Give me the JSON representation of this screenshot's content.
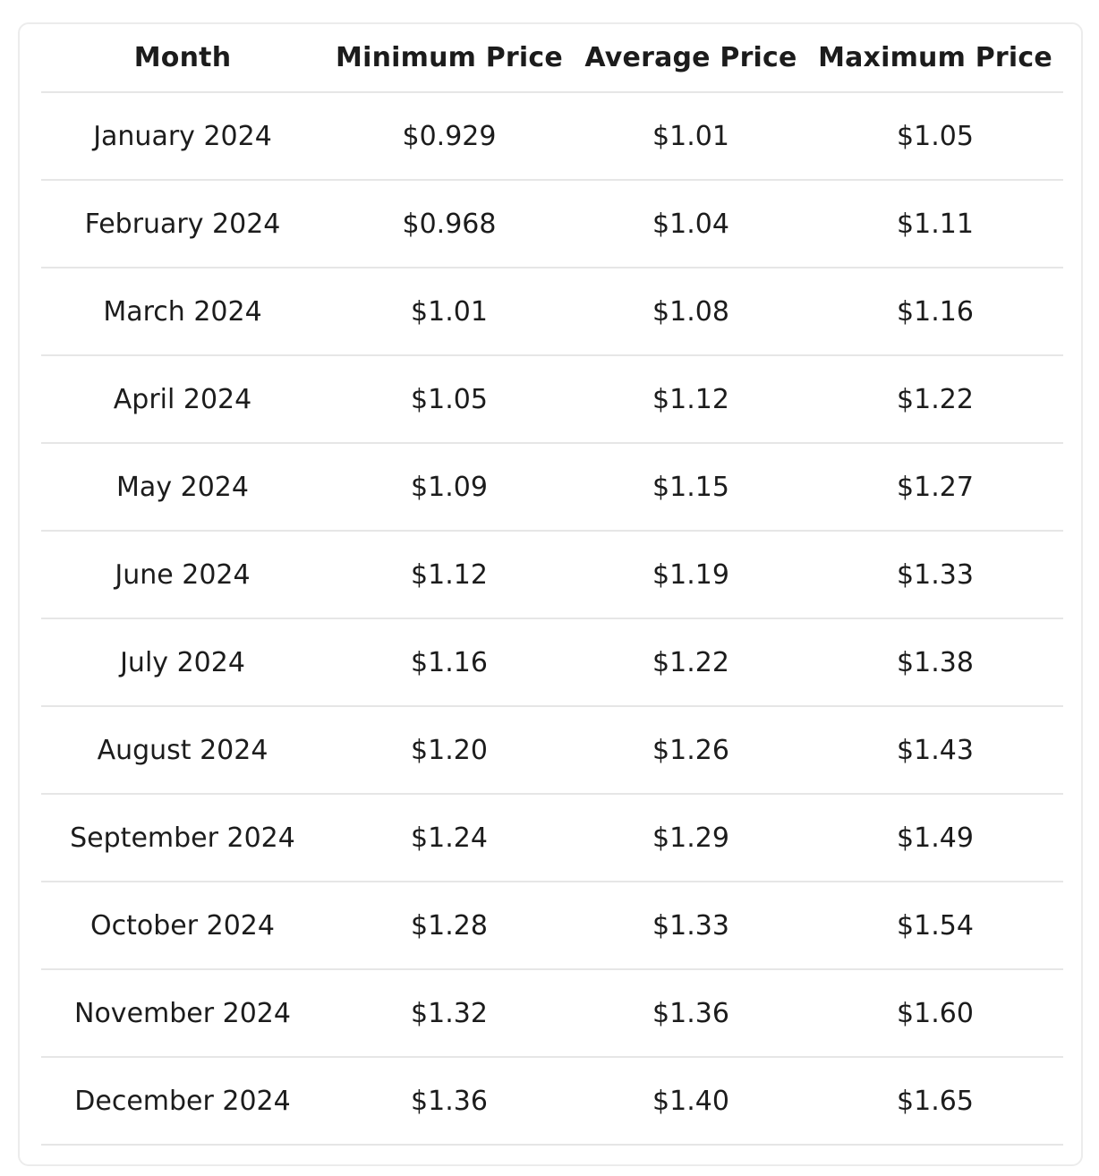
{
  "chart_data": {
    "type": "table",
    "columns": [
      "Month",
      "Minimum Price",
      "Average Price",
      "Maximum Price"
    ],
    "rows": [
      [
        "January 2024",
        "$0.929",
        "$1.01",
        "$1.05"
      ],
      [
        "February 2024",
        "$0.968",
        "$1.04",
        "$1.11"
      ],
      [
        "March 2024",
        "$1.01",
        "$1.08",
        "$1.16"
      ],
      [
        "April 2024",
        "$1.05",
        "$1.12",
        "$1.22"
      ],
      [
        "May 2024",
        "$1.09",
        "$1.15",
        "$1.27"
      ],
      [
        "June 2024",
        "$1.12",
        "$1.19",
        "$1.33"
      ],
      [
        "July 2024",
        "$1.16",
        "$1.22",
        "$1.38"
      ],
      [
        "August 2024",
        "$1.20",
        "$1.26",
        "$1.43"
      ],
      [
        "September 2024",
        "$1.24",
        "$1.29",
        "$1.49"
      ],
      [
        "October 2024",
        "$1.28",
        "$1.33",
        "$1.54"
      ],
      [
        "November 2024",
        "$1.32",
        "$1.36",
        "$1.60"
      ],
      [
        "December 2024",
        "$1.36",
        "$1.40",
        "$1.65"
      ]
    ]
  },
  "colors": {
    "text": "#1c1c1c",
    "row_divider": "#e6e6e6",
    "card_border": "#ececec",
    "background": "#ffffff"
  }
}
